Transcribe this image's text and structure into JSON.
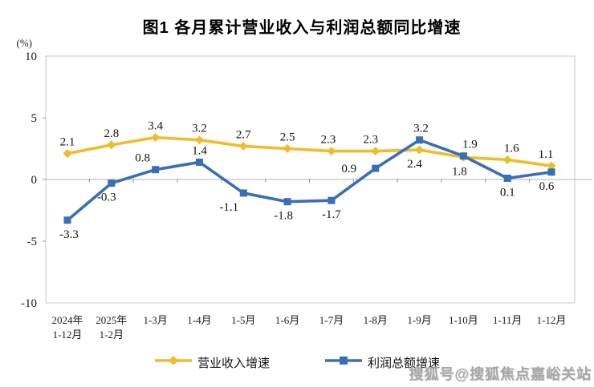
{
  "watermark": "搜狐号@搜狐焦点嘉峪关站",
  "chart_data": {
    "type": "line",
    "title": "图1  各月累计营业收入与利润总额同比增速",
    "unit": "(%)",
    "ylim": [
      -10,
      10
    ],
    "yticks": [
      10,
      5,
      0,
      -5,
      -10
    ],
    "grid": "zero-line-only",
    "legend_position": "bottom-center",
    "categories": [
      "2024年 1-12月",
      "2025年 1-2月",
      "1-3月",
      "1-4月",
      "1-5月",
      "1-6月",
      "1-7月",
      "1-8月",
      "1-9月",
      "1-10月",
      "1-11月",
      "1-12月"
    ],
    "category_lines": [
      [
        "2024年",
        "1-12月"
      ],
      [
        "2025年",
        "1-2月"
      ],
      [
        "1-3月"
      ],
      [
        "1-4月"
      ],
      [
        "1-5月"
      ],
      [
        "1-6月"
      ],
      [
        "1-7月"
      ],
      [
        "1-8月"
      ],
      [
        "1-9月"
      ],
      [
        "1-10月"
      ],
      [
        "1-11月"
      ],
      [
        "1-12月"
      ]
    ],
    "series": [
      {
        "name": "营业收入增速",
        "color": "#EFBD2B",
        "marker": "diamond",
        "values": [
          2.1,
          2.8,
          3.4,
          3.2,
          2.7,
          2.5,
          2.3,
          2.3,
          2.4,
          1.8,
          1.6,
          1.1
        ],
        "label_side": [
          "above",
          "above",
          "above",
          "above",
          "above",
          "above",
          "above",
          "above",
          "below",
          "below",
          "above",
          "above"
        ],
        "label_dx": [
          0,
          0,
          0,
          0,
          0,
          0,
          -4,
          -6,
          -6,
          -5,
          5,
          -7
        ]
      },
      {
        "name": "利润总额增速",
        "color": "#3A6EB5",
        "marker": "square",
        "values": [
          -3.3,
          -0.3,
          0.8,
          1.4,
          -1.1,
          -1.8,
          -1.7,
          0.9,
          3.2,
          1.9,
          0.1,
          0.6
        ],
        "label_side": [
          "below",
          "below",
          "above",
          "above",
          "below",
          "below",
          "below",
          "left",
          "above",
          "above",
          "below",
          "below"
        ],
        "label_dx": [
          2,
          -6,
          -16,
          0,
          -18,
          -5,
          0,
          -33,
          2,
          8,
          0,
          -6
        ]
      }
    ]
  }
}
